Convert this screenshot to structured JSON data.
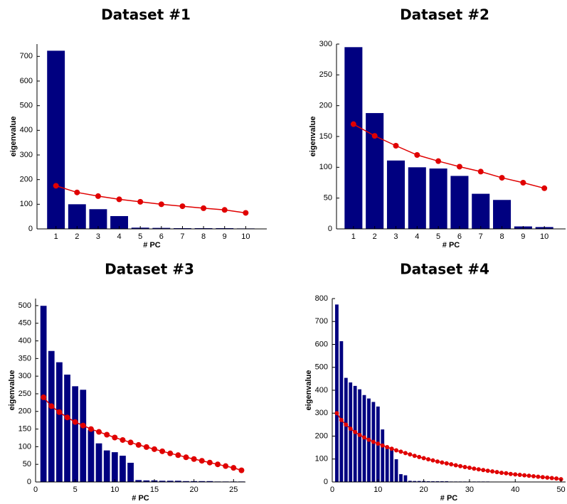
{
  "chart_data": [
    {
      "type": "bar",
      "title": "Dataset #1",
      "x_label": "# PC",
      "y_label": "eigenvalue",
      "x": [
        1,
        2,
        3,
        4,
        5,
        6,
        7,
        8,
        9,
        10
      ],
      "values": [
        723,
        100,
        80,
        52,
        5,
        4,
        3,
        3,
        3,
        2
      ],
      "color": "#000080",
      "line_values": [
        175,
        148,
        133,
        120,
        110,
        100,
        92,
        84,
        77,
        65
      ],
      "line_color": "#e00000",
      "xlim": [
        0.1,
        11
      ],
      "xticks": [
        1,
        2,
        3,
        4,
        5,
        6,
        7,
        8,
        9,
        10
      ],
      "ylim": [
        0,
        750
      ],
      "yticks": [
        0,
        100,
        200,
        300,
        400,
        500,
        600,
        700
      ]
    },
    {
      "type": "bar",
      "title": "Dataset #2",
      "x_label": "# PC",
      "y_label": "eigenvalue",
      "x": [
        1,
        2,
        3,
        4,
        5,
        6,
        7,
        8,
        9,
        10
      ],
      "values": [
        295,
        188,
        111,
        100,
        98,
        86,
        57,
        47,
        4,
        3
      ],
      "color": "#000080",
      "line_values": [
        170,
        151,
        135,
        120,
        110,
        101,
        93,
        83,
        75,
        66
      ],
      "line_color": "#e00000",
      "xlim": [
        0.2,
        11
      ],
      "xticks": [
        1,
        2,
        3,
        4,
        5,
        6,
        7,
        8,
        9,
        10
      ],
      "ylim": [
        0,
        300
      ],
      "yticks": [
        0,
        50,
        100,
        150,
        200,
        250,
        300
      ]
    },
    {
      "type": "bar",
      "title": "Dataset #3",
      "x_label": "# PC",
      "y_label": "eigenvalue",
      "x": [
        1,
        2,
        3,
        4,
        5,
        6,
        7,
        8,
        9,
        10,
        11,
        12,
        13,
        14,
        15,
        16,
        17,
        18,
        19,
        20,
        21,
        22,
        23,
        24,
        25,
        26
      ],
      "values": [
        500,
        372,
        340,
        305,
        272,
        262,
        148,
        110,
        90,
        85,
        75,
        55,
        6,
        5,
        5,
        4,
        4,
        4,
        3,
        3,
        3,
        3,
        2,
        2,
        2,
        2
      ],
      "color": "#000080",
      "line_values": [
        240,
        215,
        198,
        183,
        170,
        160,
        150,
        142,
        134,
        126,
        119,
        112,
        105,
        99,
        93,
        87,
        81,
        76,
        70,
        65,
        60,
        55,
        50,
        45,
        40,
        33
      ],
      "line_color": "#e00000",
      "xlim": [
        0,
        26.5
      ],
      "xticks": [
        0,
        5,
        10,
        15,
        20,
        25
      ],
      "ylim": [
        0,
        520
      ],
      "yticks": [
        0,
        50,
        100,
        150,
        200,
        250,
        300,
        350,
        400,
        450,
        500
      ]
    },
    {
      "type": "bar",
      "title": "Dataset #4",
      "x_label": "# PC",
      "y_label": "eigenvalue",
      "x": [
        1,
        2,
        3,
        4,
        5,
        6,
        7,
        8,
        9,
        10,
        11,
        12,
        13,
        14,
        15,
        16,
        17,
        18,
        19,
        20,
        21,
        22,
        23,
        24,
        25,
        26,
        27,
        28,
        29,
        30,
        31,
        32,
        33,
        34,
        35,
        36,
        37,
        38,
        39,
        40,
        41,
        42,
        43,
        44,
        45,
        46,
        47,
        48,
        49,
        50
      ],
      "values": [
        775,
        615,
        455,
        435,
        420,
        405,
        380,
        365,
        350,
        330,
        230,
        150,
        140,
        100,
        35,
        30,
        6,
        5,
        5,
        5,
        4,
        4,
        4,
        4,
        4,
        3,
        3,
        3,
        3,
        3,
        3,
        3,
        3,
        3,
        2,
        2,
        2,
        2,
        2,
        2,
        2,
        2,
        2,
        2,
        2,
        1,
        1,
        1,
        1,
        1
      ],
      "color": "#000080",
      "line_values": [
        300,
        270,
        250,
        232,
        218,
        205,
        194,
        184,
        175,
        167,
        159,
        152,
        145,
        138,
        132,
        126,
        120,
        114,
        109,
        104,
        99,
        94,
        89,
        85,
        81,
        77,
        73,
        69,
        65,
        62,
        58,
        55,
        52,
        49,
        46,
        43,
        40,
        38,
        35,
        33,
        31,
        29,
        27,
        25,
        23,
        21,
        19,
        17,
        15,
        12
      ],
      "line_color": "#e00000",
      "xlim": [
        0,
        51
      ],
      "xticks": [
        0,
        10,
        20,
        30,
        40,
        50
      ],
      "ylim": [
        0,
        800
      ],
      "yticks": [
        0,
        100,
        200,
        300,
        400,
        500,
        600,
        700,
        800
      ]
    }
  ]
}
